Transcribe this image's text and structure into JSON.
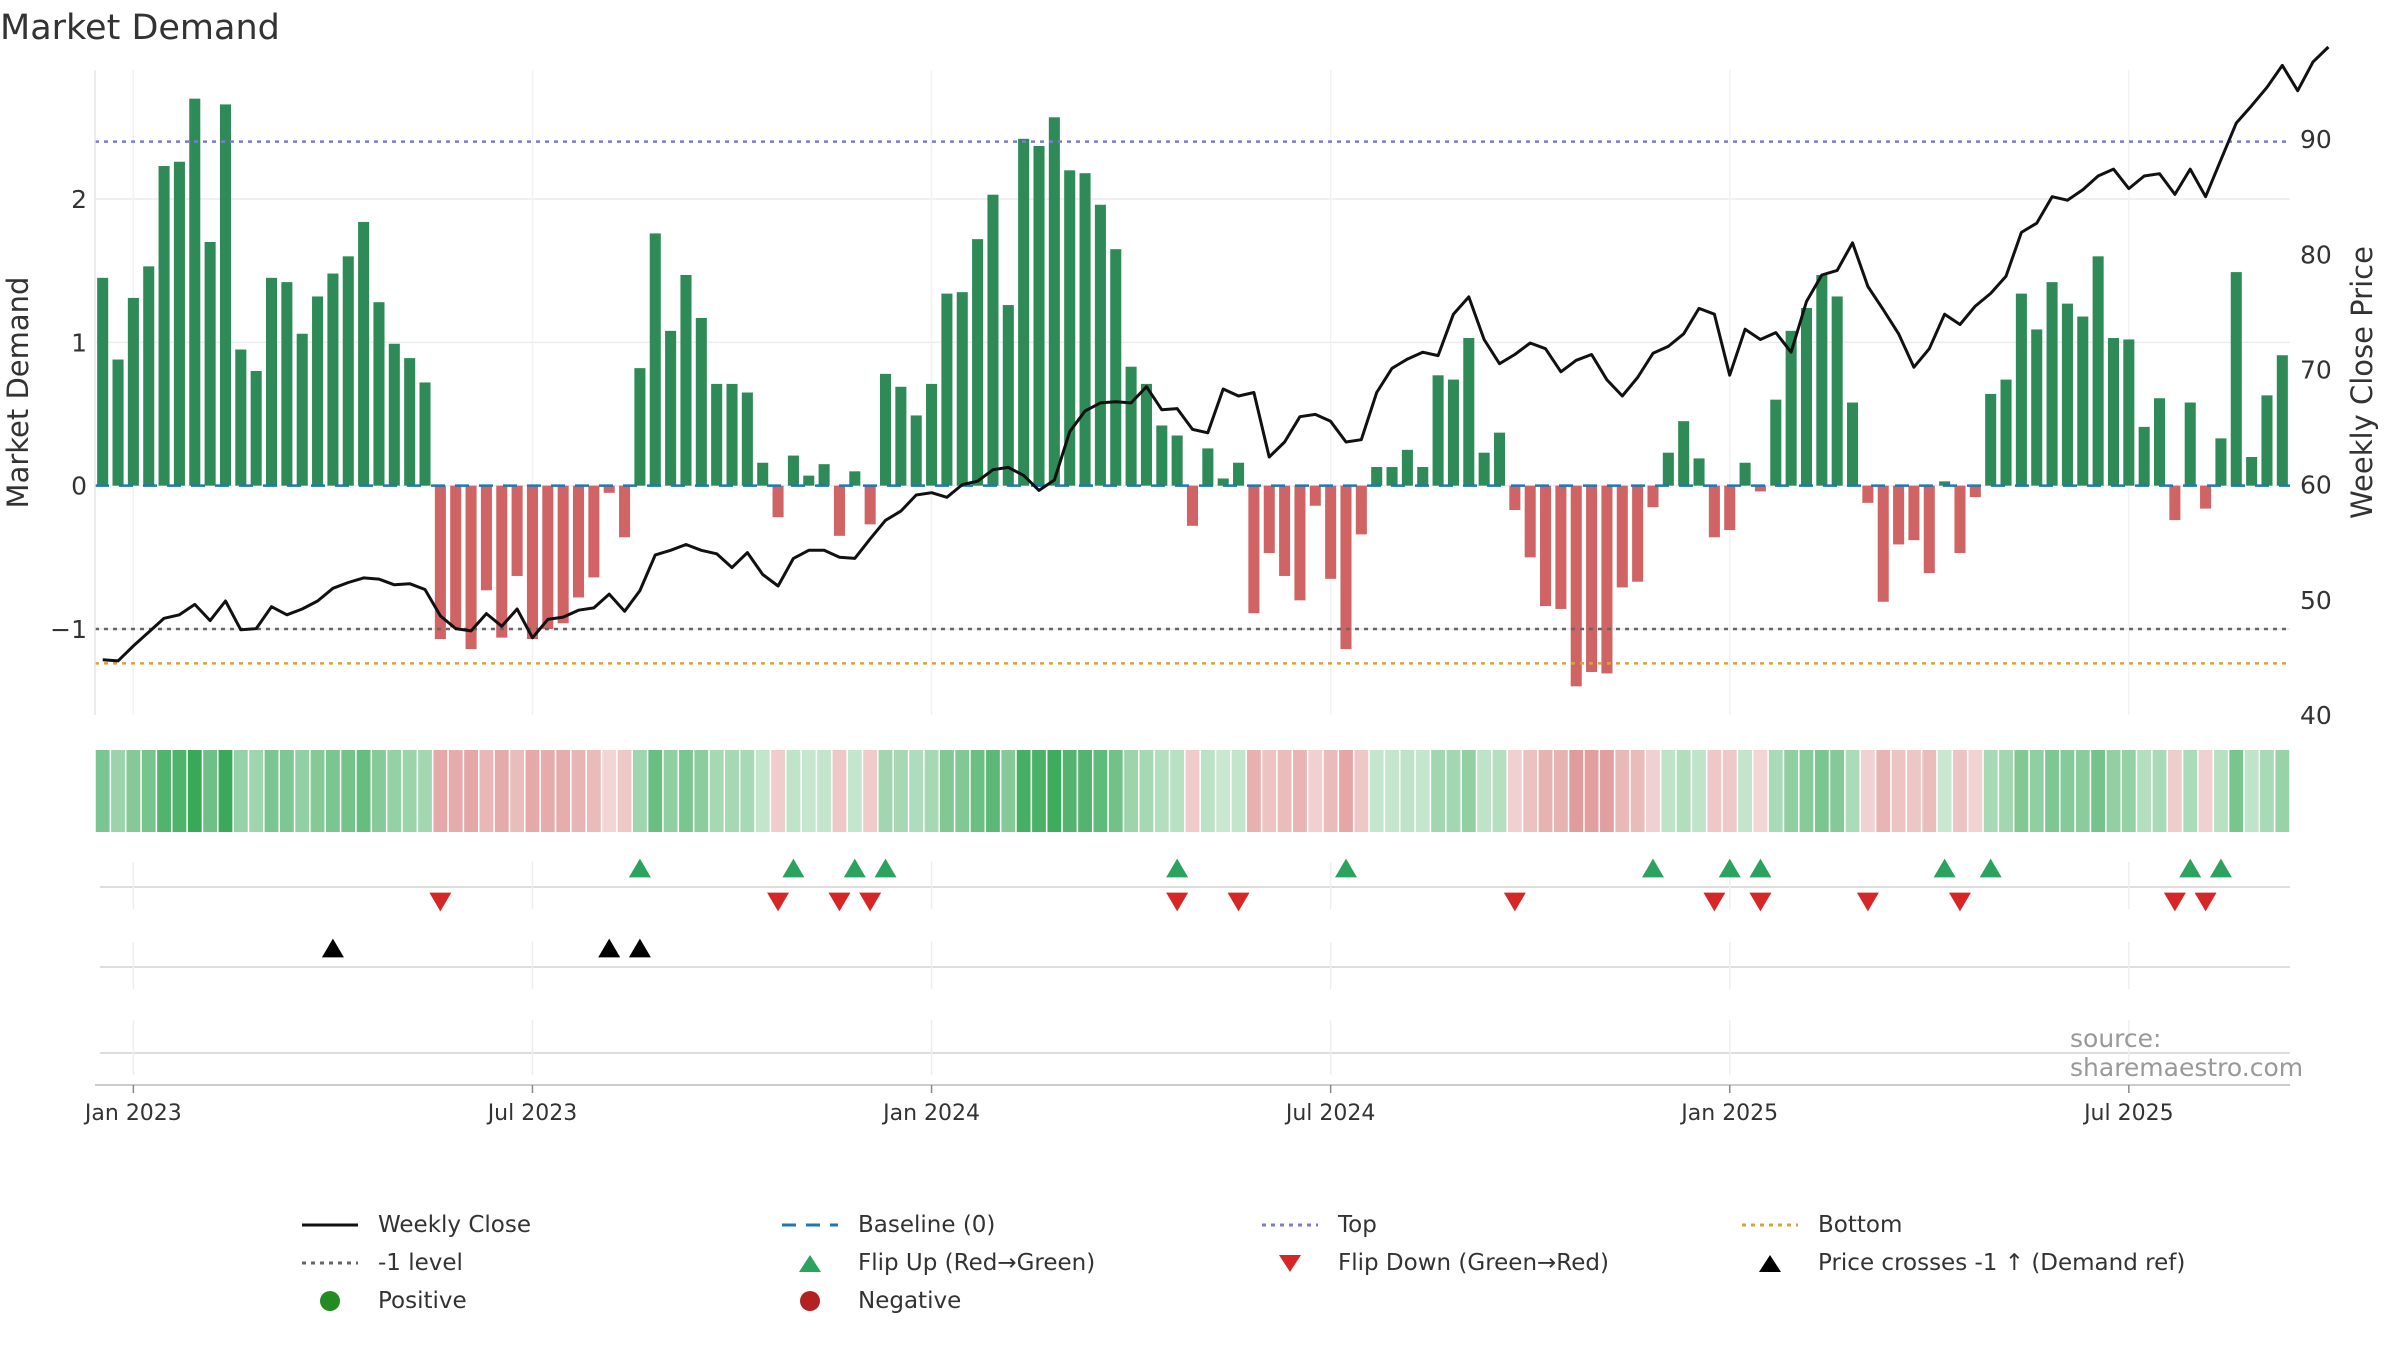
{
  "title": "Market Demand",
  "source_note": "source: sharemaestro.com",
  "colors": {
    "positive": "#2e8b57",
    "negative": "#cd5c5c",
    "price": "#111111",
    "baseline": "#1f77b4",
    "top": "#7b7bd6",
    "bottom": "#d9a33a",
    "minus_one": "#666666",
    "flip_up": "#2ca25f",
    "flip_down": "#d62728",
    "cross": "#000000"
  },
  "chart_data": {
    "type": "bar+line",
    "title": "Market Demand",
    "ylabel": "Market Demand",
    "y2label": "Weekly Close Price",
    "ylim": [
      -1.6,
      2.9
    ],
    "y2lim": [
      40,
      96
    ],
    "yticks": [
      -1,
      0,
      1,
      2
    ],
    "y2ticks": [
      40,
      50,
      60,
      70,
      80,
      90
    ],
    "xticks": [
      {
        "label": "Jan 2023",
        "week": 2
      },
      {
        "label": "Jul 2023",
        "week": 28
      },
      {
        "label": "Jan 2024",
        "week": 54
      },
      {
        "label": "Jul 2024",
        "week": 80
      },
      {
        "label": "Jan 2025",
        "week": 106
      },
      {
        "label": "Jul 2025",
        "week": 132
      }
    ],
    "reference_lines": {
      "top": 2.4,
      "bottom": -1.24,
      "minus_one": -1.0,
      "baseline": 0
    },
    "demand": [
      1.45,
      0.88,
      1.31,
      1.53,
      2.23,
      2.26,
      2.7,
      1.7,
      2.66,
      0.95,
      0.8,
      1.45,
      1.42,
      1.06,
      1.32,
      1.48,
      1.6,
      1.84,
      1.28,
      0.99,
      0.89,
      0.72,
      -1.07,
      -0.99,
      -1.14,
      -0.73,
      -1.06,
      -0.63,
      -1.07,
      -1.0,
      -0.96,
      -0.78,
      -0.64,
      -0.05,
      -0.36,
      0.82,
      1.76,
      1.08,
      1.47,
      1.17,
      0.71,
      0.71,
      0.65,
      0.16,
      -0.22,
      0.21,
      0.07,
      0.15,
      -0.35,
      0.1,
      -0.27,
      0.78,
      0.69,
      0.49,
      0.71,
      1.34,
      1.35,
      1.72,
      2.03,
      1.26,
      2.42,
      2.37,
      2.57,
      2.2,
      2.18,
      1.96,
      1.65,
      0.83,
      0.71,
      0.42,
      0.35,
      -0.28,
      0.26,
      0.05,
      0.16,
      -0.89,
      -0.47,
      -0.63,
      -0.8,
      -0.14,
      -0.65,
      -1.14,
      -0.34,
      0.13,
      0.13,
      0.25,
      0.13,
      0.77,
      0.74,
      1.03,
      0.23,
      0.37,
      -0.17,
      -0.5,
      -0.84,
      -0.86,
      -1.4,
      -1.3,
      -1.31,
      -0.71,
      -0.67,
      -0.15,
      0.23,
      0.45,
      0.19,
      -0.36,
      -0.31,
      0.16,
      -0.04,
      0.6,
      1.08,
      1.24,
      1.47,
      1.32,
      0.58,
      -0.12,
      -0.81,
      -0.41,
      -0.38,
      -0.61,
      0.03,
      -0.47,
      -0.08,
      0.64,
      0.74,
      1.34,
      1.09,
      1.42,
      1.27,
      1.18,
      1.6,
      1.03,
      1.02,
      0.41,
      0.61,
      -0.24,
      0.58,
      -0.16,
      0.33,
      1.49,
      0.2,
      0.63,
      0.91
    ],
    "price": [
      44.8,
      44.7,
      46.0,
      47.2,
      48.4,
      48.7,
      49.6,
      48.2,
      49.9,
      47.4,
      47.5,
      49.4,
      48.7,
      49.2,
      49.9,
      51.0,
      51.5,
      51.9,
      51.8,
      51.3,
      51.4,
      50.9,
      48.6,
      47.5,
      47.3,
      48.8,
      47.7,
      49.2,
      46.7,
      48.3,
      48.5,
      49.1,
      49.3,
      50.5,
      49.0,
      50.8,
      53.9,
      54.3,
      54.8,
      54.3,
      54.0,
      52.8,
      54.1,
      52.2,
      51.2,
      53.6,
      54.3,
      54.3,
      53.7,
      53.6,
      55.3,
      56.9,
      57.7,
      59.1,
      59.3,
      58.9,
      60.0,
      60.3,
      61.3,
      61.5,
      60.8,
      59.5,
      60.4,
      64.6,
      66.4,
      67.1,
      67.2,
      67.1,
      68.5,
      66.5,
      66.6,
      64.8,
      64.5,
      68.3,
      67.7,
      68.0,
      62.4,
      63.7,
      65.9,
      66.1,
      65.5,
      63.7,
      63.9,
      68.0,
      70.1,
      70.9,
      71.5,
      71.2,
      74.8,
      76.3,
      72.6,
      70.5,
      71.3,
      72.3,
      71.8,
      69.8,
      70.8,
      71.3,
      69.1,
      67.7,
      69.3,
      71.4,
      72.0,
      73.1,
      75.3,
      74.8,
      69.5,
      73.5,
      72.6,
      73.2,
      71.5,
      75.9,
      78.2,
      78.6,
      81.0,
      77.2,
      75.2,
      73.1,
      70.2,
      71.8,
      74.8,
      73.9,
      75.5,
      76.6,
      78.1,
      81.9,
      82.7,
      85.0,
      84.7,
      85.6,
      86.8,
      87.4,
      85.7,
      86.8,
      87.0,
      85.2,
      87.4,
      85.0,
      88.2,
      91.4,
      92.9,
      94.5,
      96.4,
      94.2,
      96.7,
      98.0
    ]
  },
  "signal_marks": {
    "flip_up_weeks": [
      35,
      45,
      49,
      51,
      70,
      81,
      101,
      106,
      108,
      120,
      123,
      136,
      138
    ],
    "flip_down_weeks": [
      22,
      44,
      48,
      50,
      70,
      74,
      92,
      105,
      108,
      115,
      121,
      135,
      137
    ],
    "price_cross_weeks": [
      15,
      33,
      35
    ]
  },
  "legend": [
    {
      "key": "price",
      "label": "Weekly Close"
    },
    {
      "key": "baseline",
      "label": "Baseline (0)"
    },
    {
      "key": "top",
      "label": "Top"
    },
    {
      "key": "bottom",
      "label": "Bottom"
    },
    {
      "key": "minus_one",
      "label": "-1 level"
    },
    {
      "key": "flip_up",
      "label": "Flip Up (Red→Green)"
    },
    {
      "key": "flip_down",
      "label": "Flip Down (Green→Red)"
    },
    {
      "key": "cross",
      "label": "Price crosses -1 ↑ (Demand ref)"
    },
    {
      "key": "positive",
      "label": "Positive"
    },
    {
      "key": "negative",
      "label": "Negative"
    }
  ]
}
